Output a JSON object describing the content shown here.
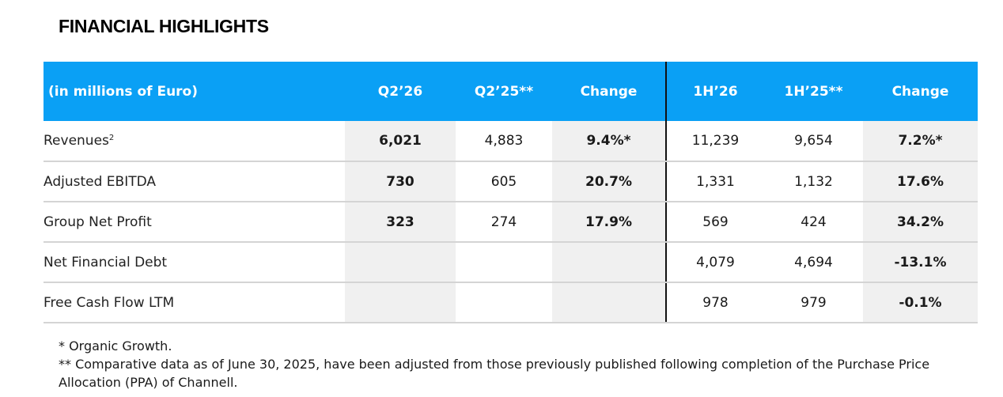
{
  "title": "FINANCIAL HIGHLIGHTS",
  "table": {
    "headers": [
      "(in millions of Euro)",
      "Q2’26",
      "Q2’25**",
      "Change",
      "1H’26",
      "1H’25**",
      "Change"
    ],
    "rows": [
      {
        "label": "Revenues",
        "sup": "2",
        "values": [
          "6,021",
          "4,883",
          "9.4%*",
          "11,239",
          "9,654",
          "7.2%*"
        ]
      },
      {
        "label": "Adjusted EBITDA",
        "sup": "",
        "values": [
          "730",
          "605",
          "20.7%",
          "1,331",
          "1,132",
          "17.6%"
        ]
      },
      {
        "label": "Group Net Profit",
        "sup": "",
        "values": [
          "323",
          "274",
          "17.9%",
          "569",
          "424",
          "34.2%"
        ]
      },
      {
        "label": "Net Financial Debt",
        "sup": "",
        "values": [
          "",
          "",
          "",
          "4,079",
          "4,694",
          "-13.1%"
        ]
      },
      {
        "label": "Free Cash Flow LTM",
        "sup": "",
        "values": [
          "",
          "",
          "",
          "978",
          "979",
          "-0.1%"
        ]
      }
    ]
  },
  "notes": [
    "* Organic Growth.",
    "** Comparative data as of June 30, 2025, have been adjusted from those previously published following completion of the Purchase Price Allocation (PPA) of Channell."
  ],
  "colors": {
    "header_bg": "#0aa0f5",
    "shade": "#f0f0f0"
  }
}
